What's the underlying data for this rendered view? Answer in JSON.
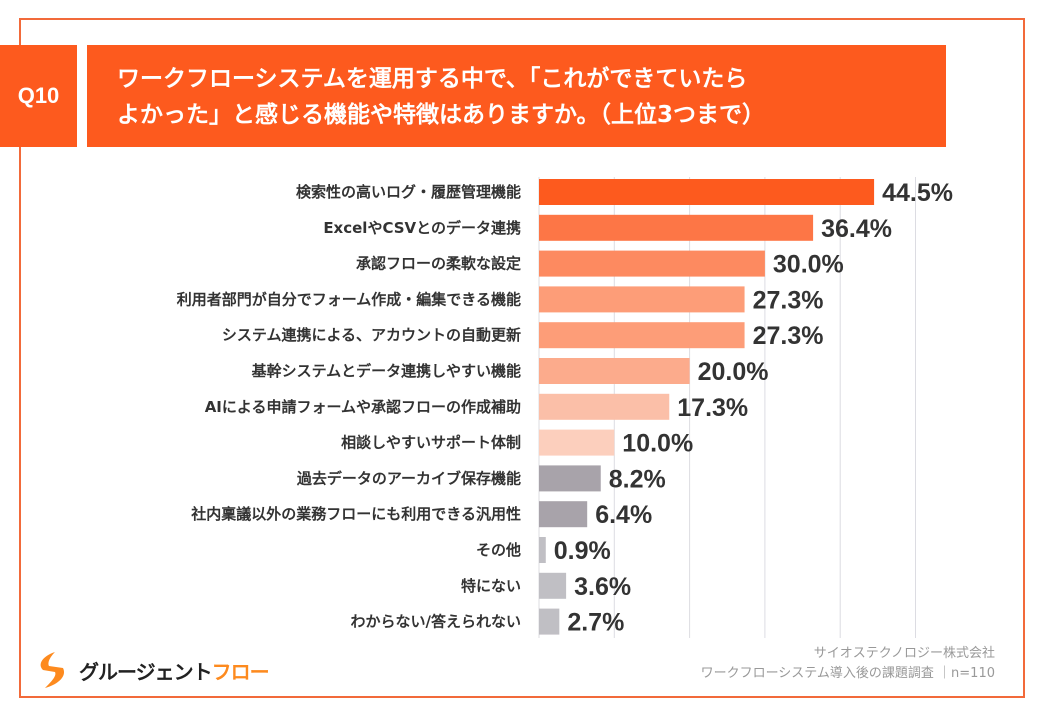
{
  "question": {
    "number": "Q10",
    "title_line1": "ワークフローシステムを運用する中で、「これができていたら",
    "title_line2": "よかった」と感じる機能や特徴はありますか。（上位3つまで）"
  },
  "chart_data": {
    "type": "bar",
    "orientation": "horizontal",
    "xlim": [
      0,
      50
    ],
    "grid": true,
    "grid_step": 10,
    "unit": "%",
    "categories": [
      "検索性の高いログ・履歴管理機能",
      "ExcelやCSVとのデータ連携",
      "承認フローの柔軟な設定",
      "利用者部門が自分でフォーム作成・編集できる機能",
      "システム連携による、アカウントの自動更新",
      "基幹システムとデータ連携しやすい機能",
      "AIによる申請フォームや承認フローの作成補助",
      "相談しやすいサポート体制",
      "過去データのアーカイブ保存機能",
      "社内稟議以外の業務フローにも利用できる汎用性",
      "その他",
      "特にない",
      "わからない/答えられない"
    ],
    "values": [
      44.5,
      36.4,
      30.0,
      27.3,
      27.3,
      20.0,
      17.3,
      10.0,
      8.2,
      6.4,
      0.9,
      3.6,
      2.7
    ],
    "value_labels": [
      "44.5%",
      "36.4%",
      "30.0%",
      "27.3%",
      "27.3%",
      "20.0%",
      "17.3%",
      "10.0%",
      "8.2%",
      "6.4%",
      "0.9%",
      "3.6%",
      "2.7%"
    ],
    "colors": [
      "#fd5a1e",
      "#fd7646",
      "#fd8a60",
      "#fd9d78",
      "#fd9d78",
      "#fcab8c",
      "#fbbfa8",
      "#fccfbd",
      "#a8a3aa",
      "#a8a3aa",
      "#c0bfc4",
      "#c0bfc4",
      "#c0bfc4"
    ]
  },
  "footer": {
    "logo_main": "グルージェント",
    "logo_accent": "フロー",
    "company": "サイオステクノロジー株式会社",
    "survey": "ワークフローシステム導入後の課題調査 ｜n=110"
  },
  "colors": {
    "accent": "#fd5a1e",
    "frame": "#f26a3a",
    "logo_accent": "#fd8a1e"
  }
}
